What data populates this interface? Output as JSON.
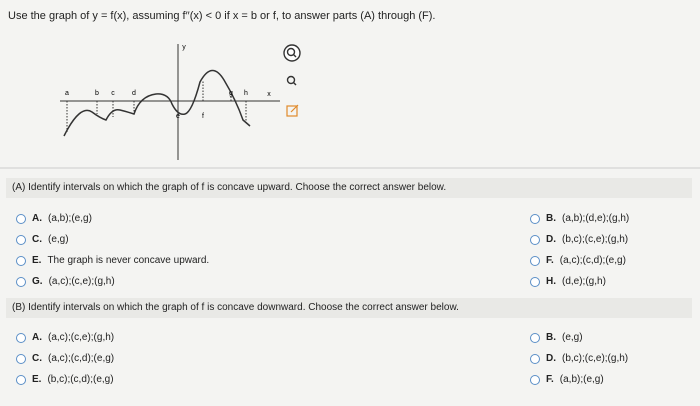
{
  "header": {
    "question": "Use the graph of y = f(x), assuming f′′(x) < 0 if x = b or f, to answer parts (A) through (F)."
  },
  "graph": {
    "y_label": "y",
    "x_label": "x",
    "point_labels": [
      "a",
      "b",
      "c",
      "d",
      "e",
      "f",
      "g",
      "h"
    ]
  },
  "part_a": {
    "prompt": "(A) Identify intervals on which the graph of f is concave upward. Choose the correct answer below.",
    "options": [
      {
        "letter": "A.",
        "text": "(a,b);(e,g)"
      },
      {
        "letter": "B.",
        "text": "(a,b);(d,e);(g,h)"
      },
      {
        "letter": "C.",
        "text": "(e,g)"
      },
      {
        "letter": "D.",
        "text": "(b,c);(c,e);(g,h)"
      },
      {
        "letter": "E.",
        "text": "The graph is never concave upward."
      },
      {
        "letter": "F.",
        "text": "(a,c);(c,d);(e,g)"
      },
      {
        "letter": "G.",
        "text": "(a,c);(c,e);(g,h)"
      },
      {
        "letter": "H.",
        "text": "(d,e);(g,h)"
      }
    ]
  },
  "part_b": {
    "prompt": "(B) Identify intervals on which the graph of f is concave downward. Choose the correct answer below.",
    "options": [
      {
        "letter": "A.",
        "text": "(a,c);(c,e);(g,h)"
      },
      {
        "letter": "B.",
        "text": "(e,g)"
      },
      {
        "letter": "C.",
        "text": "(a,c);(c,d);(e,g)"
      },
      {
        "letter": "D.",
        "text": "(b,c);(c,e);(g,h)"
      },
      {
        "letter": "E.",
        "text": "(b,c);(c,d);(e,g)"
      },
      {
        "letter": "F.",
        "text": "(a,b);(e,g)"
      }
    ]
  }
}
